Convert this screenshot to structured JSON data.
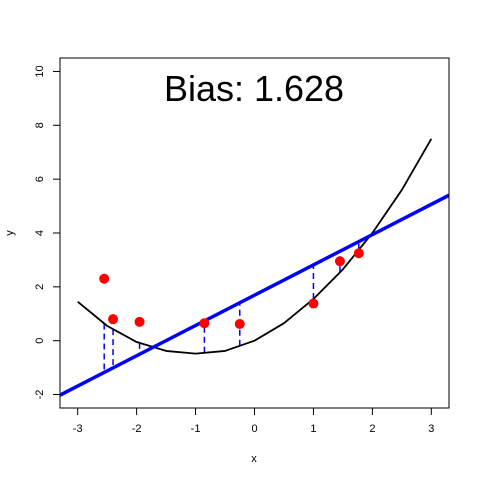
{
  "chart_data": {
    "type": "scatter",
    "title": "Bias:  1.628",
    "xlabel": "x",
    "ylabel": "y",
    "xlim": [
      -3.3,
      3.3
    ],
    "ylim": [
      -2.5,
      10.5
    ],
    "xticks": [
      -3,
      -2,
      -1,
      0,
      1,
      2,
      3
    ],
    "yticks": [
      -2,
      0,
      2,
      4,
      6,
      8,
      10
    ],
    "grid": false,
    "points": {
      "color": "#ff0000",
      "x": [
        -2.55,
        -2.4,
        -1.95,
        -0.85,
        -0.25,
        1.0,
        1.45,
        1.77
      ],
      "y": [
        2.3,
        0.8,
        0.7,
        0.65,
        0.62,
        1.38,
        2.95,
        3.25
      ]
    },
    "curve": {
      "color": "#000000",
      "x": [
        -3.0,
        -2.5,
        -2.0,
        -1.5,
        -1.0,
        -0.5,
        0.0,
        0.5,
        1.0,
        1.5,
        2.0,
        2.5,
        3.0
      ],
      "y": [
        1.45,
        0.55,
        -0.05,
        -0.38,
        -0.48,
        -0.38,
        0.0,
        0.65,
        1.55,
        2.65,
        4.0,
        5.6,
        7.5
      ]
    },
    "fit_line": {
      "color": "#0000ff",
      "intercept": 1.69,
      "slope": 1.125
    },
    "residual_segments": {
      "color": "#0000ff",
      "style": "dashed",
      "x": [
        -2.55,
        -2.4,
        -1.95,
        -0.85,
        -0.25,
        1.0,
        1.45,
        1.77
      ]
    }
  }
}
